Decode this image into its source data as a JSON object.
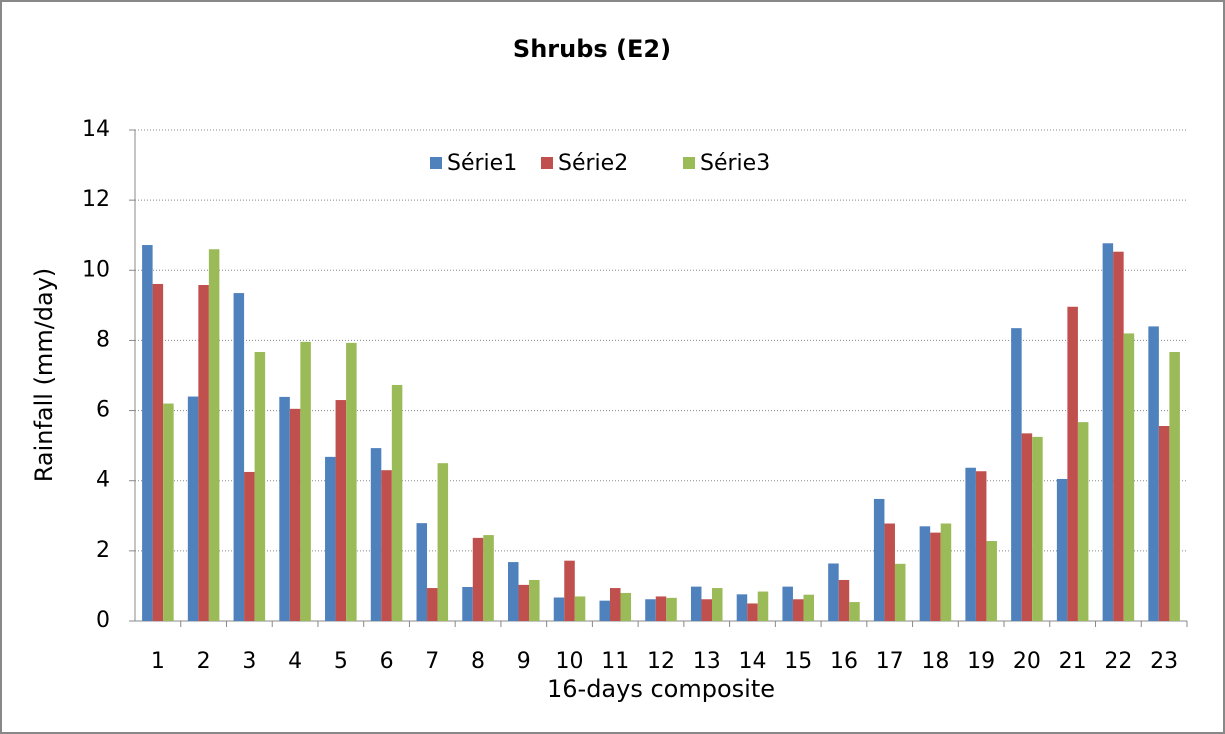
{
  "chart_data": {
    "type": "bar",
    "title": "Shrubs (E2)",
    "x_label": "16-days composite",
    "y_label": "Rainfall (mm/day)",
    "categories": [
      "1",
      "2",
      "3",
      "4",
      "5",
      "6",
      "7",
      "8",
      "9",
      "10",
      "11",
      "12",
      "13",
      "14",
      "15",
      "16",
      "17",
      "18",
      "19",
      "20",
      "21",
      "22",
      "23"
    ],
    "series": [
      {
        "name": "Série1",
        "color": "#4f81bd",
        "values": [
          10.72,
          6.4,
          9.35,
          6.39,
          4.68,
          4.93,
          2.79,
          0.97,
          1.68,
          0.67,
          0.58,
          0.62,
          0.98,
          0.76,
          0.98,
          1.64,
          3.48,
          2.7,
          4.37,
          8.35,
          4.05,
          10.77,
          8.4
        ]
      },
      {
        "name": "Série2",
        "color": "#c0504d",
        "values": [
          9.61,
          9.58,
          4.25,
          6.05,
          6.3,
          4.3,
          0.94,
          2.37,
          1.03,
          1.72,
          0.94,
          0.7,
          0.62,
          0.5,
          0.62,
          1.17,
          2.78,
          2.52,
          4.27,
          5.35,
          8.96,
          10.53,
          5.56
        ]
      },
      {
        "name": "Série3",
        "color": "#9bbb59",
        "values": [
          6.2,
          10.6,
          7.67,
          7.96,
          7.93,
          6.73,
          4.5,
          2.45,
          1.17,
          0.7,
          0.8,
          0.66,
          0.94,
          0.84,
          0.75,
          0.54,
          1.63,
          2.78,
          2.28,
          5.25,
          5.67,
          8.2,
          7.67
        ]
      }
    ],
    "ylim": [
      0,
      14
    ],
    "yticks": [
      0,
      2,
      4,
      6,
      8,
      10,
      12,
      14
    ],
    "grid": true,
    "legend": "top"
  }
}
